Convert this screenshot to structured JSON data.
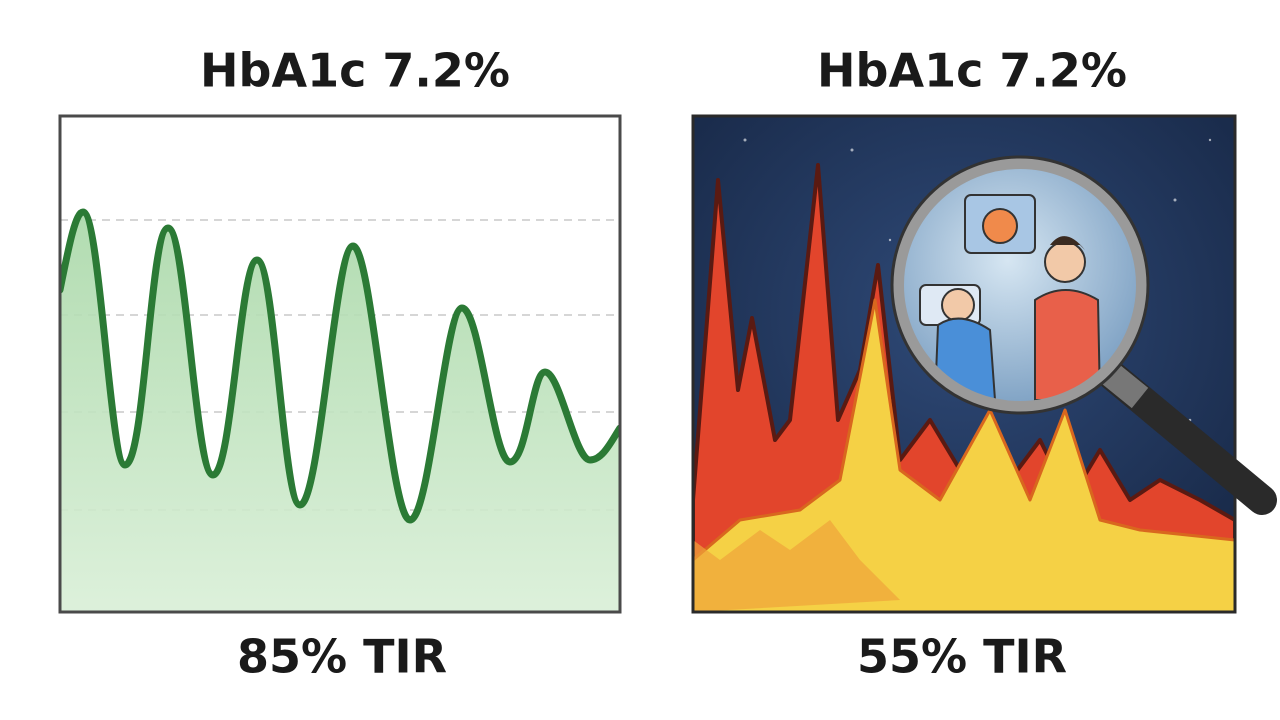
{
  "panels": [
    {
      "title": "HbA1c 7.2%",
      "caption": "85% TIR"
    },
    {
      "title": "HbA1c 7.2%",
      "caption": "55% TIR"
    }
  ]
}
